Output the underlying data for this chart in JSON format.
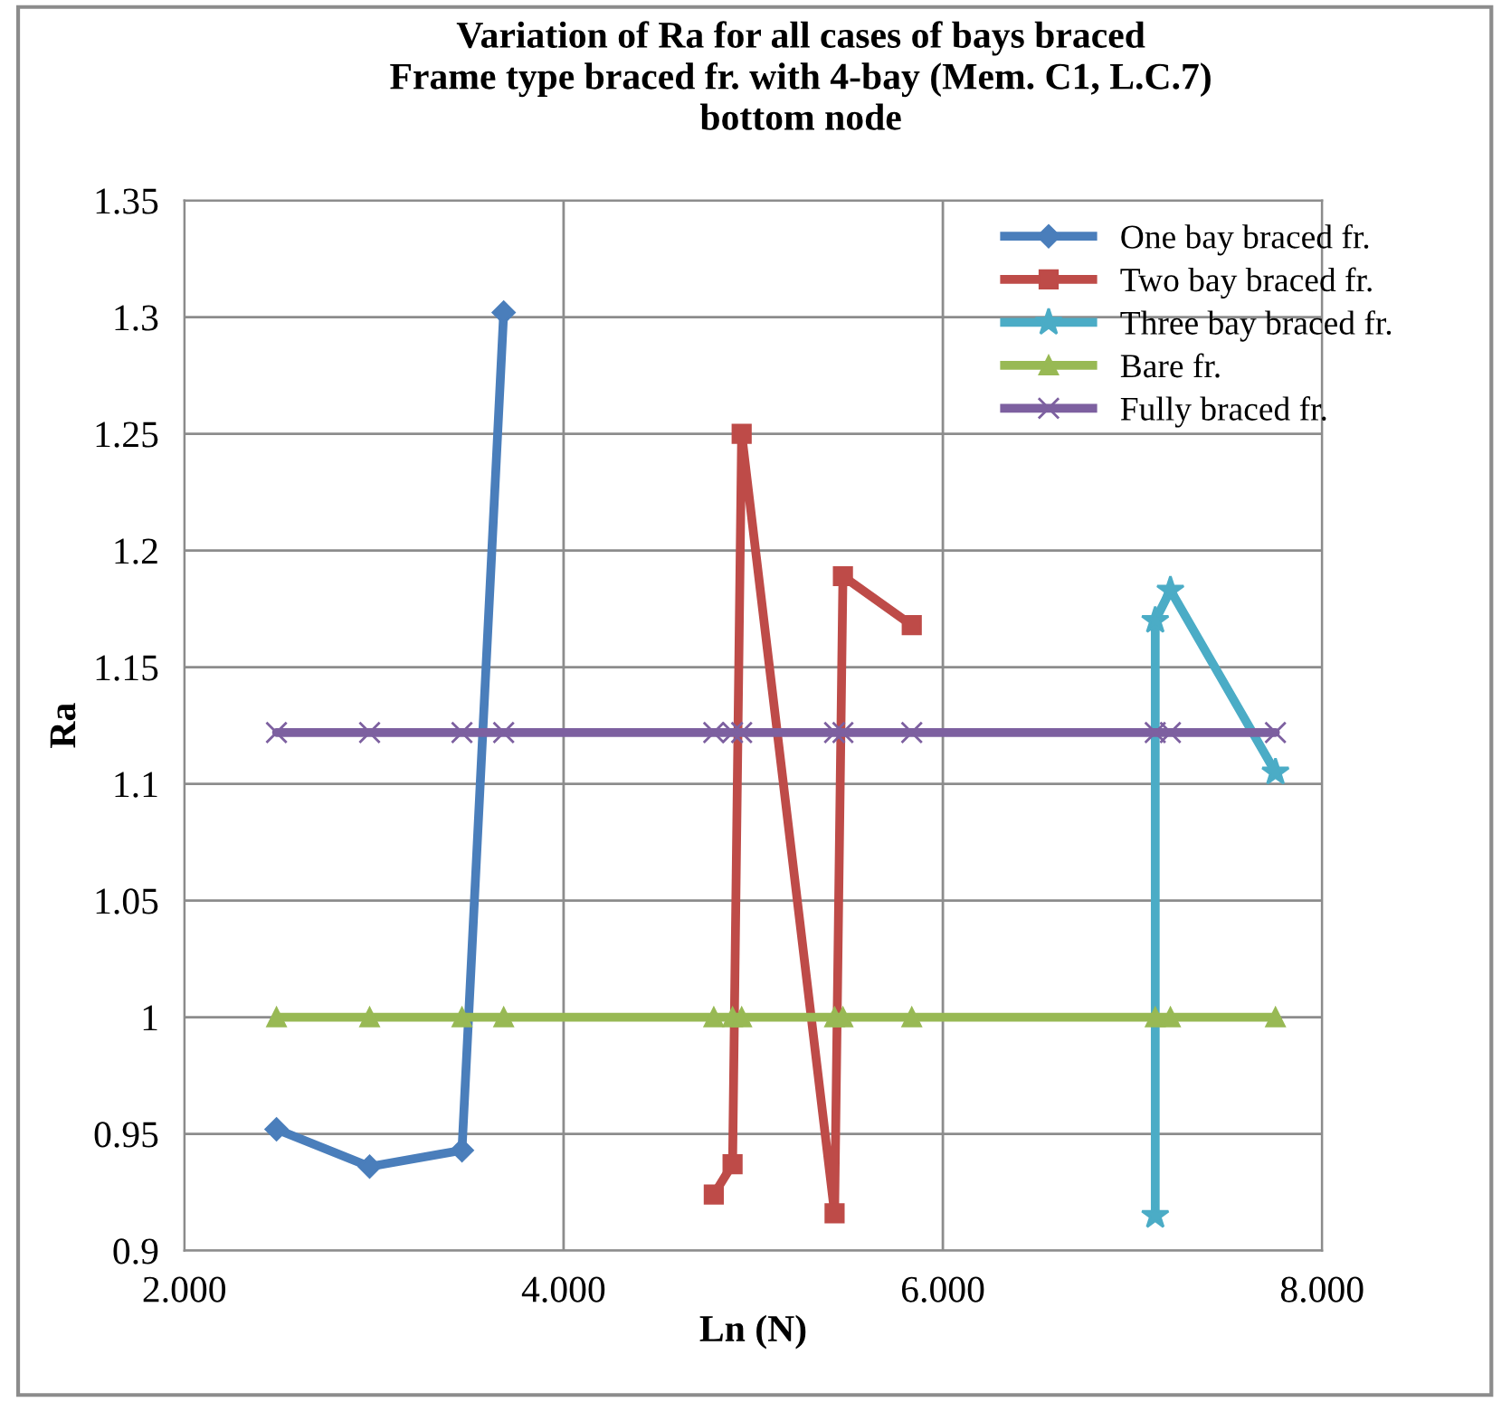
{
  "chart_data": {
    "type": "line",
    "title": "Variation of Ra for all cases of bays braced\nFrame type braced fr. with 4-bay (Mem. C1, L.C.7)\nbottom node",
    "xlabel": "Ln (N)",
    "ylabel": "Ra",
    "xlim": [
      2,
      8
    ],
    "xticks": [
      {
        "value": 2,
        "label": "2.000"
      },
      {
        "value": 4,
        "label": "4.000"
      },
      {
        "value": 6,
        "label": "6.000"
      },
      {
        "value": 8,
        "label": "8.000"
      }
    ],
    "ylim": [
      0.9,
      1.35
    ],
    "yticks": [
      0.9,
      0.95,
      1,
      1.05,
      1.1,
      1.15,
      1.2,
      1.25,
      1.3,
      1.35
    ],
    "grid": true,
    "legend": "top right",
    "series": [
      {
        "name": "One bay braced fr.",
        "color": "#4a7ebb",
        "marker": "diamond",
        "x": [
          2.486,
          2.977,
          3.464,
          3.684
        ],
        "values": [
          0.952,
          0.936,
          0.943,
          1.302
        ]
      },
      {
        "name": "Two bay braced fr.",
        "color": "#be4b48",
        "marker": "square",
        "x": [
          4.792,
          4.891,
          4.939,
          5.429,
          5.473,
          5.836
        ],
        "values": [
          0.924,
          0.937,
          1.25,
          0.916,
          1.189,
          1.168
        ]
      },
      {
        "name": "Three bay braced fr.",
        "color": "#4bacc6",
        "marker": "star",
        "x": [
          7.12,
          7.12,
          7.2,
          7.754
        ],
        "values": [
          0.915,
          1.17,
          1.183,
          1.105
        ]
      },
      {
        "name": "Bare fr.",
        "color": "#98b954",
        "marker": "triangle",
        "x": [
          2.486,
          2.977,
          3.464,
          3.684,
          4.792,
          4.891,
          4.939,
          5.429,
          5.473,
          5.836,
          7.12,
          7.2,
          7.754
        ],
        "values": [
          1,
          1,
          1,
          1,
          1,
          1,
          1,
          1,
          1,
          1,
          1,
          1,
          1
        ]
      },
      {
        "name": "Fully braced fr.",
        "color": "#7d60a0",
        "marker": "cross",
        "x": [
          2.486,
          2.977,
          3.464,
          3.684,
          4.792,
          4.891,
          4.939,
          5.429,
          5.473,
          5.836,
          7.12,
          7.2,
          7.754
        ],
        "values": [
          1.122,
          1.122,
          1.122,
          1.122,
          1.122,
          1.122,
          1.122,
          1.122,
          1.122,
          1.122,
          1.122,
          1.122,
          1.122
        ]
      }
    ]
  }
}
